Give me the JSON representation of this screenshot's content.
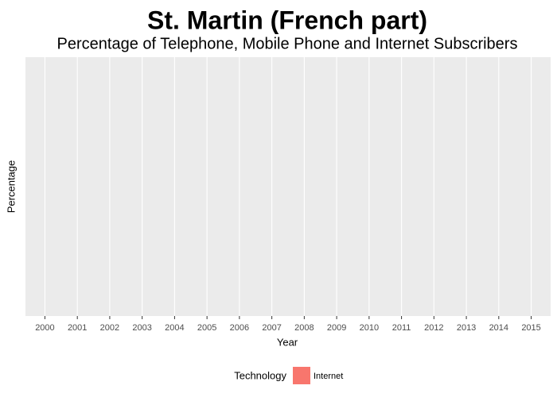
{
  "chart_data": {
    "type": "line",
    "title": "St. Martin (French part)",
    "subtitle": "Percentage of Telephone, Mobile Phone and Internet Subscribers",
    "x_label": "Year",
    "y_label": "Percentage",
    "x": [
      2000,
      2001,
      2002,
      2003,
      2004,
      2005,
      2006,
      2007,
      2008,
      2009,
      2010,
      2011,
      2012,
      2013,
      2014,
      2015
    ],
    "series": [
      {
        "name": "Internet",
        "color": "#f8766d",
        "values": [
          null,
          null,
          null,
          null,
          null,
          null,
          null,
          null,
          null,
          null,
          null,
          null,
          null,
          null,
          null,
          null
        ]
      }
    ],
    "xlim": [
      1999.4,
      2015.6
    ],
    "xticks": [
      2000,
      2001,
      2002,
      2003,
      2004,
      2005,
      2006,
      2007,
      2008,
      2009,
      2010,
      2011,
      2012,
      2013,
      2014,
      2015
    ],
    "grid": true,
    "legend_title": "Technology",
    "legend_position": "bottom"
  }
}
